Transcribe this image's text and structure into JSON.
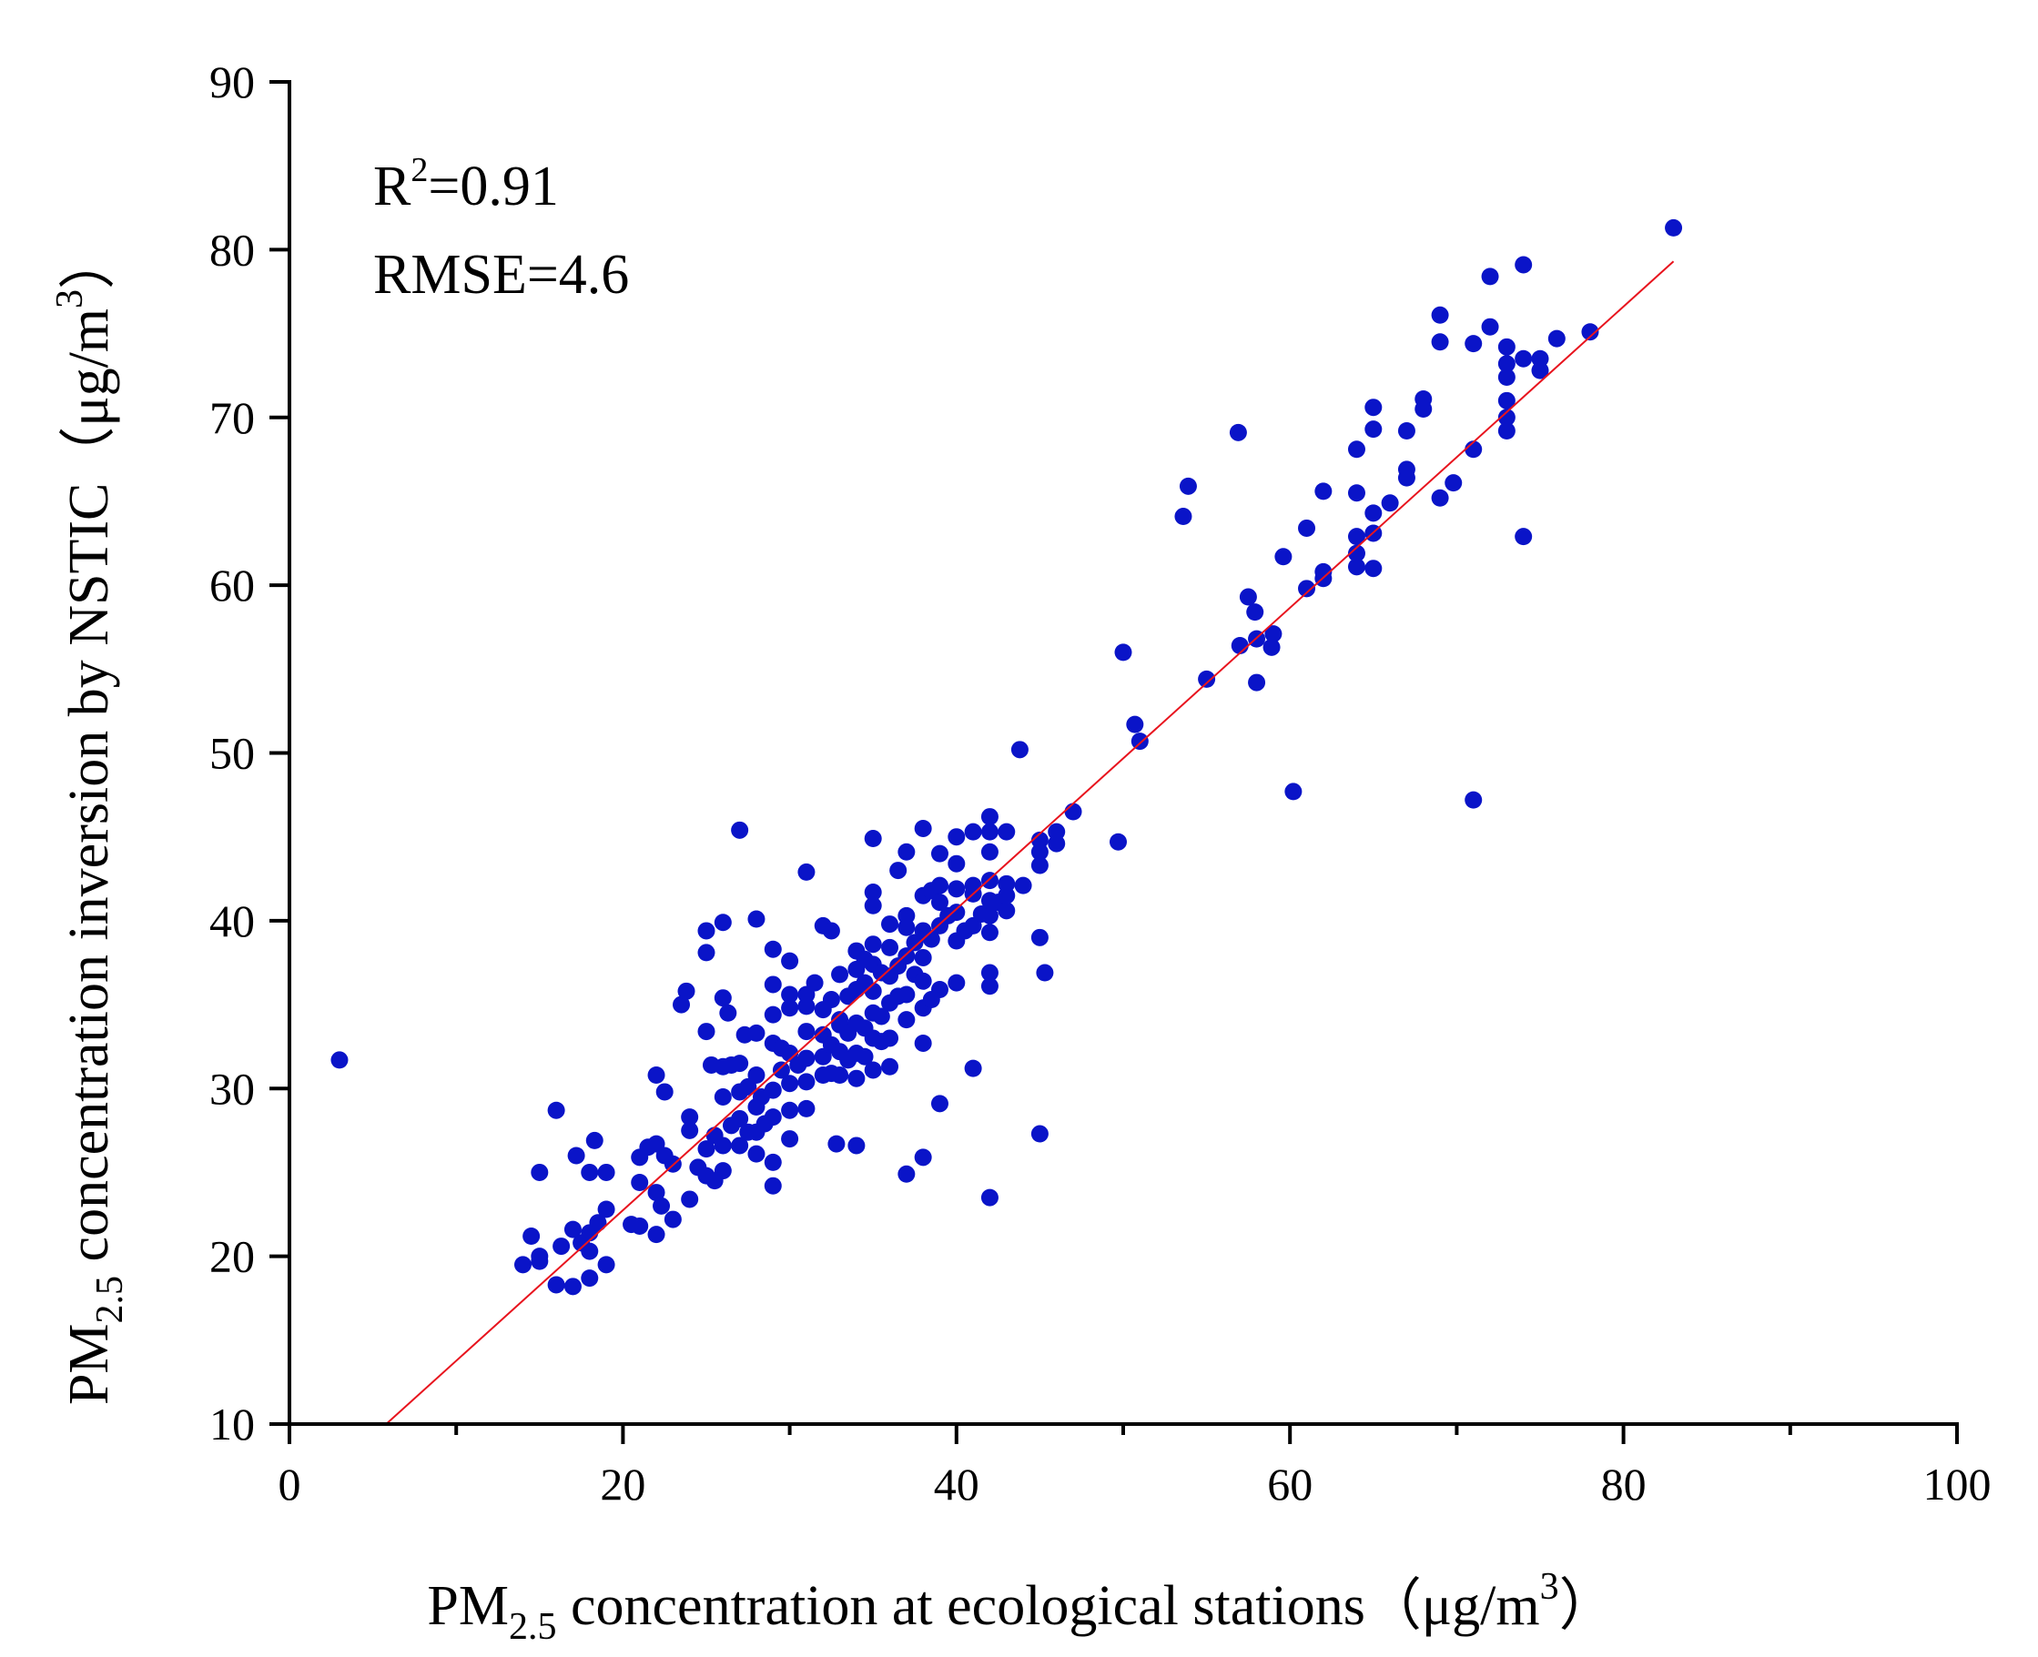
{
  "chart_data": {
    "type": "scatter",
    "xlabel": {
      "prefix": "PM",
      "sub": "2.5",
      "text": " concentration at ecological stations（μg/m",
      "sup": "3",
      "suffix": "）"
    },
    "ylabel": {
      "prefix": "PM",
      "sub": "2.5",
      "text": " concentration inversion by NSTIC（μg/m",
      "sup": "3",
      "suffix": "）"
    },
    "xlim": [
      0,
      100
    ],
    "ylim": [
      10,
      90
    ],
    "xticks": [
      "0",
      "20",
      "40",
      "60",
      "80",
      "100"
    ],
    "yticks": [
      "10",
      "20",
      "30",
      "40",
      "50",
      "60",
      "70",
      "80",
      "90"
    ],
    "annotations": {
      "r2_label": "R",
      "r2_sup": "2",
      "r2_value": "=0.91",
      "rmse": "RMSE=4.6"
    },
    "grid": false,
    "marker_color": "#0a14c8",
    "fit_line_color": "#e8141e",
    "fit_line": {
      "x0": 5.8,
      "y0": 10,
      "x1": 83,
      "y1": 79.3
    },
    "points": [
      [
        3,
        31.7
      ],
      [
        14,
        19.5
      ],
      [
        14.5,
        21.2
      ],
      [
        15,
        20
      ],
      [
        15,
        19.7
      ],
      [
        15,
        25
      ],
      [
        16,
        28.7
      ],
      [
        16,
        18.3
      ],
      [
        16.3,
        20.6
      ],
      [
        17,
        18.2
      ],
      [
        17,
        21.6
      ],
      [
        17.2,
        26
      ],
      [
        17.5,
        20.8
      ],
      [
        18,
        21.4
      ],
      [
        18,
        18.7
      ],
      [
        18,
        20.3
      ],
      [
        18,
        25
      ],
      [
        18.3,
        26.9
      ],
      [
        18.5,
        22
      ],
      [
        19,
        22.8
      ],
      [
        19,
        19.5
      ],
      [
        19,
        25
      ],
      [
        20.5,
        21.9
      ],
      [
        21,
        24.4
      ],
      [
        21,
        21.8
      ],
      [
        21,
        25.9
      ],
      [
        21.5,
        26.5
      ],
      [
        22,
        26.7
      ],
      [
        22,
        21.3
      ],
      [
        22,
        23.8
      ],
      [
        22,
        30.8
      ],
      [
        22.3,
        23
      ],
      [
        22.5,
        26
      ],
      [
        22.5,
        29.8
      ],
      [
        23,
        25.5
      ],
      [
        23,
        22.2
      ],
      [
        23.5,
        35
      ],
      [
        23.8,
        35.8
      ],
      [
        24,
        28.3
      ],
      [
        24,
        23.4
      ],
      [
        24,
        27.5
      ],
      [
        24.5,
        25.3
      ],
      [
        25,
        24.8
      ],
      [
        25,
        26.4
      ],
      [
        25,
        39.4
      ],
      [
        25,
        38.1
      ],
      [
        25,
        33.4
      ],
      [
        25.3,
        31.4
      ],
      [
        25.5,
        24.5
      ],
      [
        25.5,
        27.2
      ],
      [
        26,
        25.1
      ],
      [
        26,
        26.6
      ],
      [
        26,
        31.3
      ],
      [
        26,
        29.5
      ],
      [
        26,
        35.4
      ],
      [
        26,
        39.9
      ],
      [
        26.3,
        34.5
      ],
      [
        26.5,
        27.8
      ],
      [
        26.5,
        31.4
      ],
      [
        27,
        26.6
      ],
      [
        27,
        28.2
      ],
      [
        27,
        45.4
      ],
      [
        27,
        29.8
      ],
      [
        27,
        31.5
      ],
      [
        27.3,
        33.2
      ],
      [
        27.5,
        27.4
      ],
      [
        27.5,
        30.1
      ],
      [
        28,
        26.1
      ],
      [
        28,
        27.4
      ],
      [
        28,
        28.9
      ],
      [
        28,
        30.8
      ],
      [
        28,
        33.3
      ],
      [
        28,
        40.1
      ],
      [
        28.3,
        29.5
      ],
      [
        28.5,
        27.9
      ],
      [
        29,
        24.2
      ],
      [
        29,
        25.6
      ],
      [
        29,
        28.3
      ],
      [
        29,
        29.9
      ],
      [
        29,
        32.7
      ],
      [
        29,
        34.4
      ],
      [
        29,
        36.2
      ],
      [
        29,
        38.3
      ],
      [
        29.5,
        31.1
      ],
      [
        29.5,
        32.4
      ],
      [
        30,
        27
      ],
      [
        30,
        28.7
      ],
      [
        30,
        30.3
      ],
      [
        30,
        32.1
      ],
      [
        30,
        34.8
      ],
      [
        30,
        35.6
      ],
      [
        30,
        37.6
      ],
      [
        30.5,
        31.4
      ],
      [
        31,
        28.8
      ],
      [
        31,
        30.4
      ],
      [
        31,
        31.8
      ],
      [
        31,
        33.4
      ],
      [
        31,
        34.9
      ],
      [
        31,
        35.6
      ],
      [
        31,
        42.9
      ],
      [
        31.5,
        36.3
      ],
      [
        32,
        30.8
      ],
      [
        32,
        31.9
      ],
      [
        32,
        33.2
      ],
      [
        32,
        34.7
      ],
      [
        32,
        39.7
      ],
      [
        32.5,
        30.9
      ],
      [
        32.5,
        32.6
      ],
      [
        32.5,
        35.3
      ],
      [
        32.5,
        39.4
      ],
      [
        32.8,
        26.7
      ],
      [
        33,
        30.8
      ],
      [
        33,
        32.2
      ],
      [
        33,
        33.8
      ],
      [
        33,
        34.1
      ],
      [
        33,
        36.8
      ],
      [
        33.5,
        31.7
      ],
      [
        33.5,
        33.3
      ],
      [
        33.5,
        35.5
      ],
      [
        34,
        30.6
      ],
      [
        34,
        32.1
      ],
      [
        34,
        33.9
      ],
      [
        34,
        35.9
      ],
      [
        34,
        37.1
      ],
      [
        34,
        38.2
      ],
      [
        34,
        26.6
      ],
      [
        34.5,
        31.9
      ],
      [
        34.5,
        33.6
      ],
      [
        34.5,
        36.3
      ],
      [
        34.5,
        37.7
      ],
      [
        35,
        31.1
      ],
      [
        35,
        33
      ],
      [
        35,
        34.5
      ],
      [
        35,
        35.8
      ],
      [
        35,
        37.4
      ],
      [
        35,
        38.6
      ],
      [
        35,
        40.9
      ],
      [
        35,
        41.7
      ],
      [
        35,
        44.9
      ],
      [
        35.5,
        32.8
      ],
      [
        35.5,
        34.3
      ],
      [
        35.5,
        36.9
      ],
      [
        36,
        31.3
      ],
      [
        36,
        33
      ],
      [
        36,
        35.1
      ],
      [
        36,
        36.7
      ],
      [
        36,
        38.4
      ],
      [
        36,
        39.8
      ],
      [
        36.5,
        35.5
      ],
      [
        36.5,
        37.3
      ],
      [
        36.5,
        43
      ],
      [
        37,
        24.9
      ],
      [
        37,
        34.1
      ],
      [
        37,
        35.6
      ],
      [
        37,
        37.9
      ],
      [
        37,
        39.6
      ],
      [
        37,
        40.3
      ],
      [
        37,
        44.1
      ],
      [
        37.5,
        36.8
      ],
      [
        37.5,
        38.7
      ],
      [
        38,
        25.9
      ],
      [
        38,
        32.7
      ],
      [
        38,
        34.8
      ],
      [
        38,
        36.4
      ],
      [
        38,
        37.8
      ],
      [
        38,
        39.4
      ],
      [
        38,
        41.5
      ],
      [
        38,
        45.5
      ],
      [
        38.5,
        35.3
      ],
      [
        38.5,
        38.9
      ],
      [
        38.5,
        41.8
      ],
      [
        39,
        29.1
      ],
      [
        39,
        35.9
      ],
      [
        39,
        39.7
      ],
      [
        39,
        42.1
      ],
      [
        39,
        44
      ],
      [
        39,
        41.1
      ],
      [
        39.5,
        40.3
      ],
      [
        40,
        36.3
      ],
      [
        40,
        38.8
      ],
      [
        40,
        40.5
      ],
      [
        40,
        41.9
      ],
      [
        40,
        43.4
      ],
      [
        40,
        45
      ],
      [
        40.5,
        39.4
      ],
      [
        41,
        31.2
      ],
      [
        41,
        39.7
      ],
      [
        41,
        41.6
      ],
      [
        41,
        42.1
      ],
      [
        41,
        45.3
      ],
      [
        41.5,
        40.4
      ],
      [
        42,
        23.5
      ],
      [
        42,
        36.1
      ],
      [
        42,
        36.9
      ],
      [
        42,
        39.3
      ],
      [
        42,
        40.3
      ],
      [
        42,
        41.2
      ],
      [
        42,
        42.4
      ],
      [
        42,
        44.1
      ],
      [
        42,
        45.3
      ],
      [
        42,
        46.2
      ],
      [
        42.5,
        41.1
      ],
      [
        43,
        40.6
      ],
      [
        43,
        41.5
      ],
      [
        43,
        42.2
      ],
      [
        43,
        45.3
      ],
      [
        43.8,
        50.2
      ],
      [
        44,
        42.1
      ],
      [
        45,
        39
      ],
      [
        45,
        43.3
      ],
      [
        45,
        44.1
      ],
      [
        45,
        44.8
      ],
      [
        45,
        27.3
      ],
      [
        45.3,
        36.9
      ],
      [
        46,
        44.6
      ],
      [
        46,
        45.3
      ],
      [
        47,
        46.5
      ],
      [
        49.7,
        44.7
      ],
      [
        50,
        56
      ],
      [
        50.7,
        51.7
      ],
      [
        51,
        50.7
      ],
      [
        53.6,
        64.1
      ],
      [
        53.9,
        65.9
      ],
      [
        55,
        54.4
      ],
      [
        56.9,
        69.1
      ],
      [
        57,
        56.4
      ],
      [
        57.5,
        59.3
      ],
      [
        57.9,
        58.4
      ],
      [
        58,
        56.8
      ],
      [
        58,
        54.2
      ],
      [
        58.9,
        56.3
      ],
      [
        59,
        57.1
      ],
      [
        59.6,
        61.7
      ],
      [
        60.2,
        47.7
      ],
      [
        61,
        59.8
      ],
      [
        61,
        63.4
      ],
      [
        62,
        60.4
      ],
      [
        62,
        60.8
      ],
      [
        62,
        65.6
      ],
      [
        64,
        61.1
      ],
      [
        64,
        61.9
      ],
      [
        64,
        62.9
      ],
      [
        64,
        65.5
      ],
      [
        64,
        68.1
      ],
      [
        65,
        61
      ],
      [
        65,
        63.1
      ],
      [
        65,
        64.3
      ],
      [
        65,
        69.3
      ],
      [
        65,
        70.6
      ],
      [
        66,
        64.9
      ],
      [
        67,
        66.4
      ],
      [
        67,
        66.9
      ],
      [
        67,
        69.2
      ],
      [
        68,
        70.5
      ],
      [
        68,
        71.1
      ],
      [
        69,
        65.2
      ],
      [
        69,
        74.5
      ],
      [
        69,
        76.1
      ],
      [
        69.8,
        66.1
      ],
      [
        71,
        68.1
      ],
      [
        71,
        74.4
      ],
      [
        71,
        47.2
      ],
      [
        72,
        75.4
      ],
      [
        72,
        78.4
      ],
      [
        73,
        69.2
      ],
      [
        73,
        70
      ],
      [
        73,
        71
      ],
      [
        73,
        72.4
      ],
      [
        73,
        73.2
      ],
      [
        73,
        74.2
      ],
      [
        74,
        62.9
      ],
      [
        74,
        73.5
      ],
      [
        74,
        79.1
      ],
      [
        75,
        72.8
      ],
      [
        75,
        73.5
      ],
      [
        76,
        74.7
      ],
      [
        78,
        75.1
      ],
      [
        83,
        81.3
      ]
    ]
  }
}
